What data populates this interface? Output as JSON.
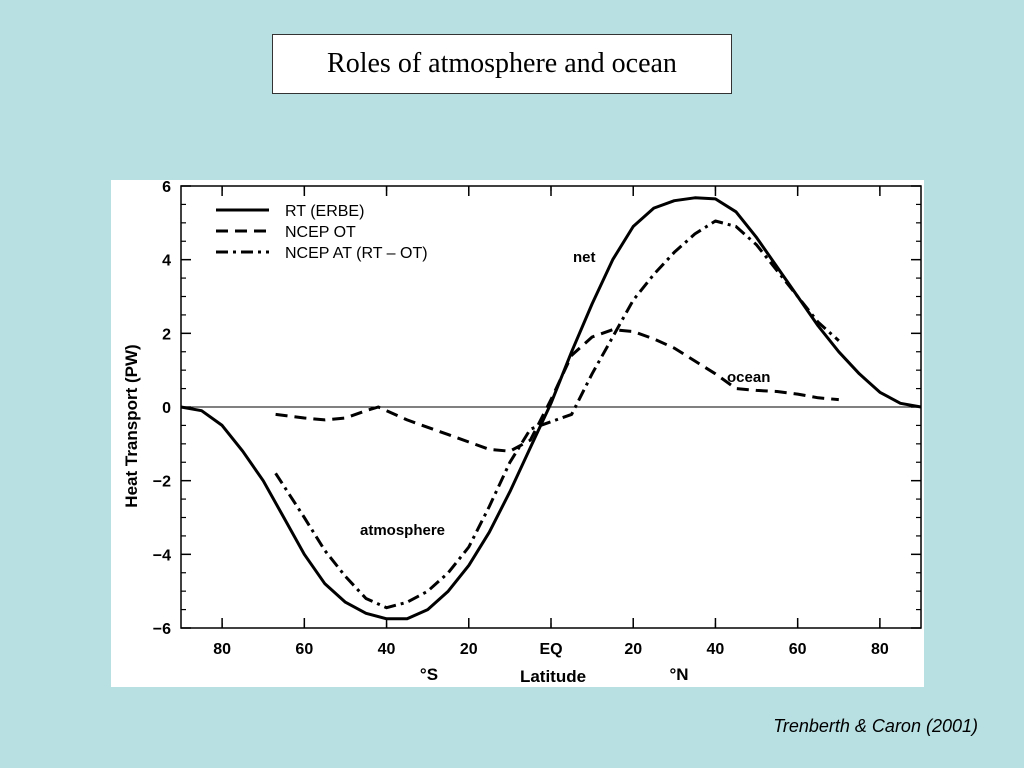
{
  "slide": {
    "title": "Roles of atmosphere and ocean",
    "citation": "Trenberth & Caron (2001)",
    "background_color": "#b8dfe2"
  },
  "chart_data": {
    "type": "line",
    "title": "",
    "xlabel": "Latitude",
    "ylabel": "Heat Transport (PW)",
    "xlim": [
      -90,
      90
    ],
    "ylim": [
      -6,
      6
    ],
    "x_ticks": [
      -80,
      -60,
      -40,
      -20,
      0,
      20,
      40,
      60,
      80
    ],
    "x_tick_labels": [
      "80",
      "60",
      "40",
      "20",
      "EQ",
      "20",
      "40",
      "60",
      "80"
    ],
    "x_hemisphere_labels": {
      "south": "°S",
      "north": "°N"
    },
    "y_ticks": [
      -6,
      -4,
      -2,
      0,
      2,
      4,
      6
    ],
    "y_tick_labels": [
      "−6",
      "−4",
      "−2",
      "0",
      "2",
      "4",
      "6"
    ],
    "zero_line": true,
    "grid": false,
    "legend_position": "top-left",
    "series": [
      {
        "name": "RT (ERBE)",
        "style": "solid",
        "x": [
          -90,
          -85,
          -80,
          -75,
          -70,
          -65,
          -60,
          -55,
          -50,
          -45,
          -40,
          -35,
          -30,
          -25,
          -20,
          -15,
          -10,
          -5,
          0,
          5,
          10,
          15,
          20,
          25,
          30,
          35,
          40,
          45,
          50,
          55,
          60,
          65,
          70,
          75,
          80,
          85,
          90
        ],
        "y": [
          0.0,
          -0.1,
          -0.5,
          -1.2,
          -2.0,
          -3.0,
          -4.0,
          -4.8,
          -5.3,
          -5.6,
          -5.75,
          -5.75,
          -5.5,
          -5.0,
          -4.3,
          -3.4,
          -2.3,
          -1.1,
          0.1,
          1.5,
          2.8,
          4.0,
          4.9,
          5.4,
          5.6,
          5.68,
          5.65,
          5.3,
          4.6,
          3.8,
          3.0,
          2.2,
          1.5,
          0.9,
          0.4,
          0.1,
          0.0
        ]
      },
      {
        "name": "NCEP OT",
        "style": "dashed",
        "x": [
          -67,
          -60,
          -55,
          -50,
          -45,
          -42,
          -40,
          -35,
          -30,
          -25,
          -20,
          -15,
          -10,
          -5,
          0,
          5,
          10,
          15,
          20,
          25,
          30,
          35,
          40,
          45,
          50,
          55,
          60,
          65,
          70
        ],
        "y": [
          -0.2,
          -0.3,
          -0.35,
          -0.3,
          -0.1,
          0.0,
          -0.1,
          -0.35,
          -0.55,
          -0.75,
          -0.95,
          -1.15,
          -1.2,
          -0.9,
          0.2,
          1.4,
          1.9,
          2.1,
          2.05,
          1.85,
          1.6,
          1.25,
          0.9,
          0.5,
          0.45,
          0.42,
          0.35,
          0.25,
          0.2
        ]
      },
      {
        "name": "NCEP AT (RT – OT)",
        "style": "dashdot",
        "x": [
          -67,
          -60,
          -55,
          -50,
          -45,
          -40,
          -35,
          -30,
          -25,
          -20,
          -15,
          -10,
          -5,
          0,
          5,
          10,
          15,
          20,
          25,
          30,
          35,
          40,
          45,
          50,
          55,
          60,
          65,
          70
        ],
        "y": [
          -1.8,
          -3.0,
          -3.9,
          -4.6,
          -5.2,
          -5.45,
          -5.3,
          -5.0,
          -4.5,
          -3.8,
          -2.7,
          -1.5,
          -0.6,
          -0.4,
          -0.2,
          0.9,
          1.9,
          2.9,
          3.6,
          4.2,
          4.7,
          5.05,
          4.9,
          4.4,
          3.7,
          3.0,
          2.3,
          1.8
        ]
      }
    ],
    "annotations": [
      "net",
      "ocean",
      "atmosphere"
    ]
  }
}
